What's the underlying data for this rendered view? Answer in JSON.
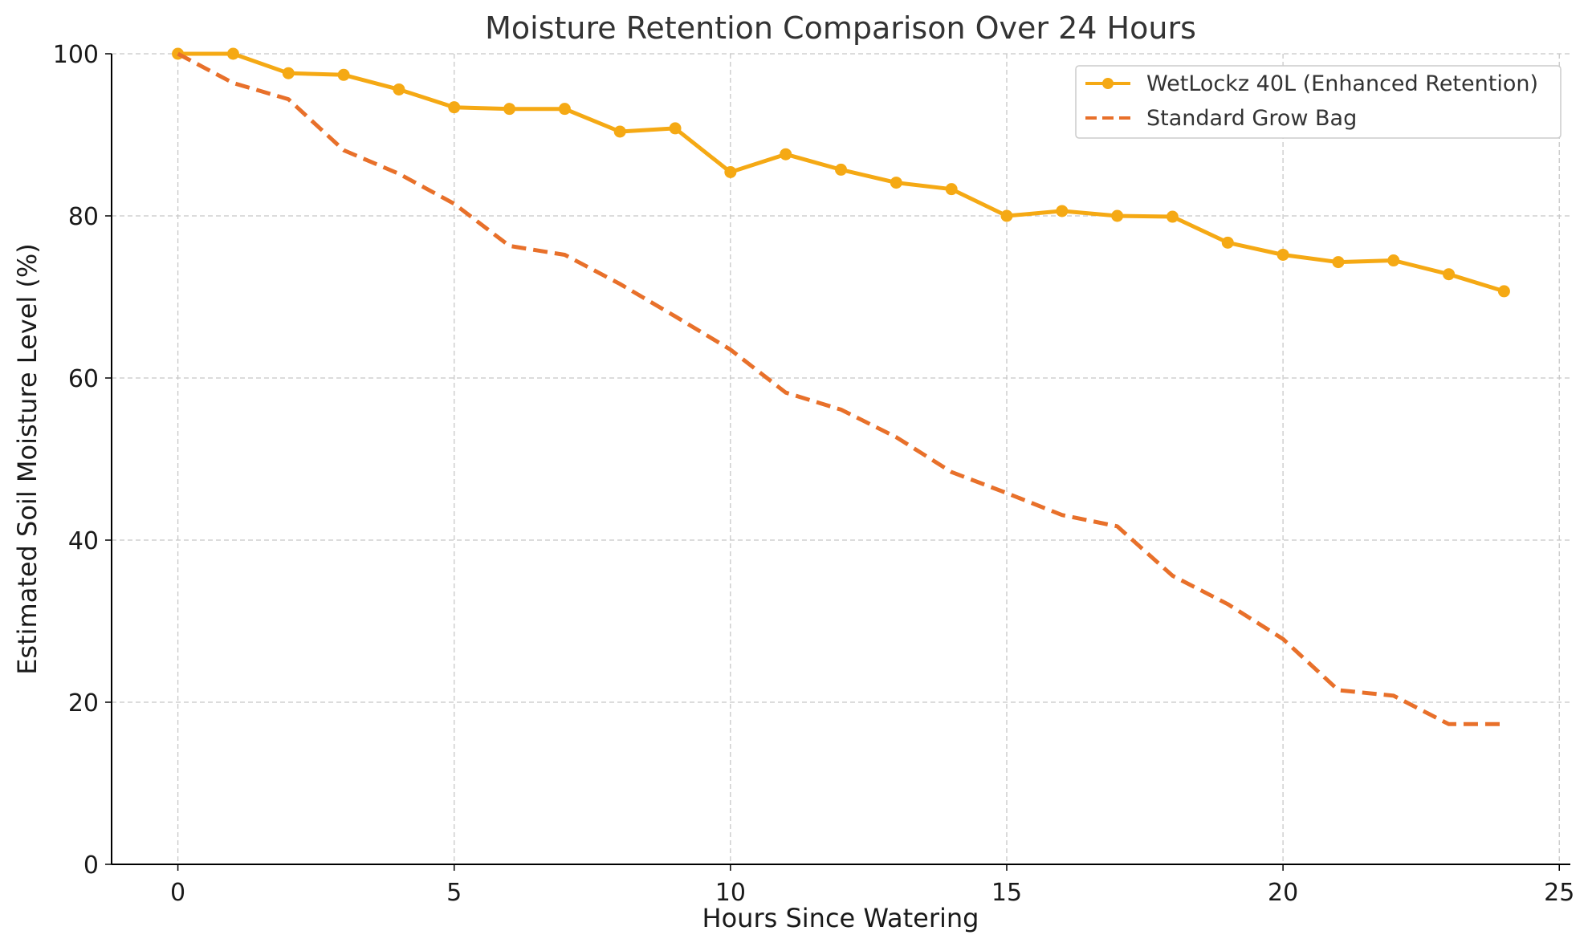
{
  "chart_data": {
    "type": "line",
    "title": "Moisture Retention Comparison Over 24 Hours",
    "xlabel": "Hours Since Watering",
    "ylabel": "Estimated Soil Moisture Level (%)",
    "xlim": [
      -1.2,
      25.2
    ],
    "ylim": [
      0,
      100
    ],
    "xticks": [
      0,
      5,
      10,
      15,
      20,
      25
    ],
    "yticks": [
      0,
      20,
      40,
      60,
      80,
      100
    ],
    "grid": true,
    "legend_position": "top-right",
    "x": [
      0,
      1,
      2,
      3,
      4,
      5,
      6,
      7,
      8,
      9,
      10,
      11,
      12,
      13,
      14,
      15,
      16,
      17,
      18,
      19,
      20,
      21,
      22,
      23,
      24
    ],
    "series": [
      {
        "name": "WetLockz 40L (Enhanced Retention)",
        "color": "#F5A914",
        "style": "solid-markers",
        "values": [
          100,
          100,
          97.6,
          97.4,
          95.6,
          93.4,
          93.2,
          93.2,
          90.4,
          90.8,
          85.4,
          87.6,
          85.7,
          84.1,
          83.3,
          80.0,
          80.6,
          80.0,
          79.9,
          76.7,
          75.2,
          74.3,
          74.5,
          72.8,
          70.7
        ]
      },
      {
        "name": "Standard Grow Bag",
        "color": "#E8702A",
        "style": "dashed",
        "values": [
          100,
          96.4,
          94.4,
          88.1,
          85.2,
          81.5,
          76.3,
          75.2,
          71.6,
          67.6,
          63.5,
          58.2,
          56.1,
          52.7,
          48.4,
          45.8,
          43.1,
          41.7,
          35.6,
          32.1,
          27.8,
          21.5,
          20.8,
          17.3,
          17.3
        ]
      }
    ]
  }
}
